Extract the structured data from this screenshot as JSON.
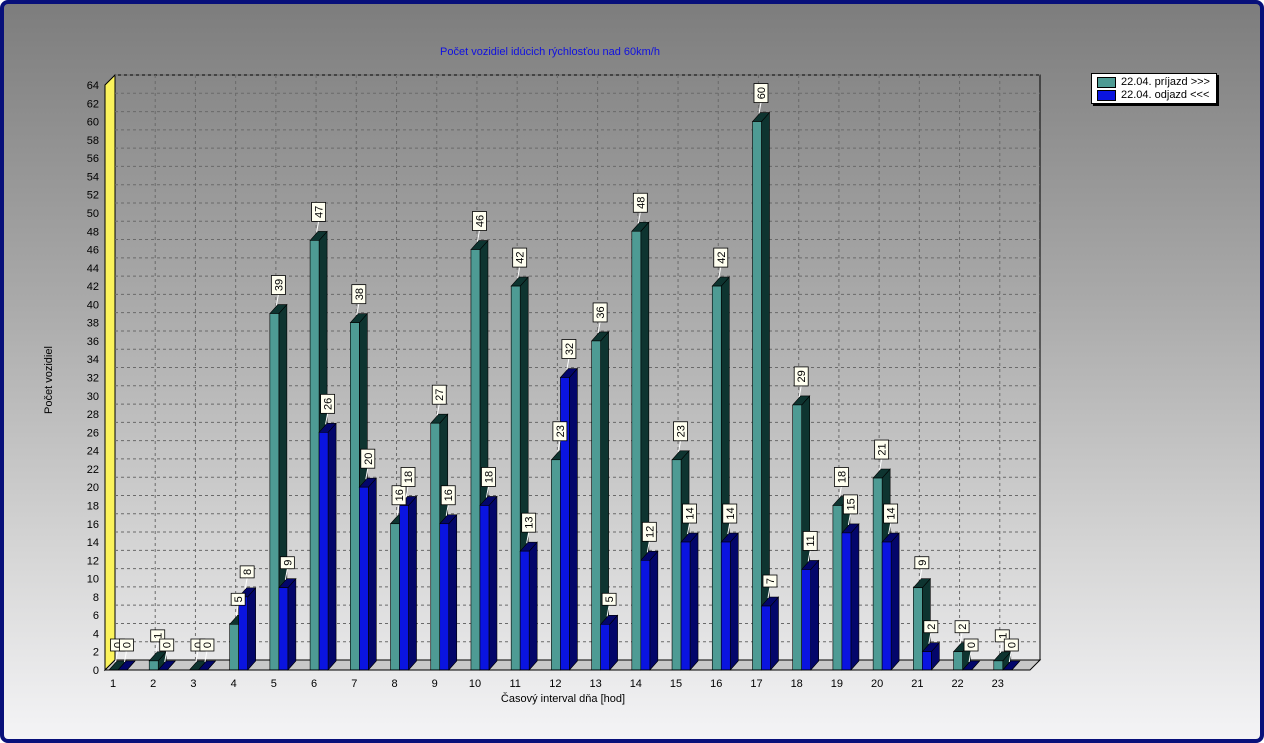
{
  "chart_data": {
    "type": "bar",
    "title": "Počet vozidiel idúcich rýchlosťou nad 60km/h",
    "xlabel": "Časový interval dňa [hod]",
    "ylabel": "Počet vozidiel",
    "ylim": [
      0,
      64
    ],
    "ytick_step": 2,
    "grid": true,
    "legend_position": "top-right",
    "categories": [
      "1",
      "2",
      "3",
      "4",
      "5",
      "6",
      "7",
      "8",
      "9",
      "10",
      "11",
      "12",
      "13",
      "14",
      "15",
      "16",
      "17",
      "18",
      "19",
      "20",
      "21",
      "22",
      "23"
    ],
    "series": [
      {
        "name": "22.04.  príjazd >>>",
        "color": "#4e9b94",
        "dark": "#0e3430",
        "values": [
          0,
          1,
          0,
          5,
          39,
          47,
          38,
          16,
          27,
          46,
          42,
          23,
          36,
          48,
          23,
          42,
          60,
          29,
          18,
          21,
          9,
          2,
          1
        ]
      },
      {
        "name": "22.04.  odjazd <<<",
        "color": "#0a14e0",
        "dark": "#03066a",
        "values": [
          0,
          0,
          0,
          8,
          9,
          26,
          20,
          18,
          16,
          18,
          13,
          32,
          5,
          12,
          14,
          14,
          7,
          11,
          15,
          14,
          2,
          0,
          0
        ]
      }
    ]
  }
}
